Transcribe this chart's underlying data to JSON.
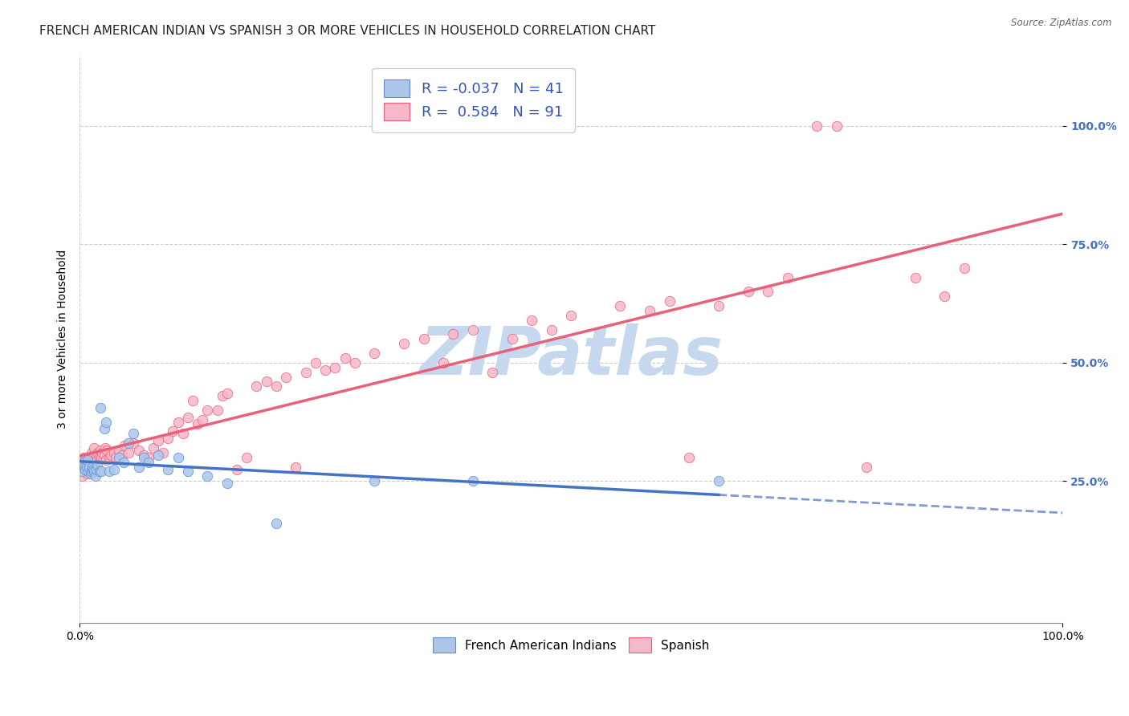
{
  "title": "FRENCH AMERICAN INDIAN VS SPANISH 3 OR MORE VEHICLES IN HOUSEHOLD CORRELATION CHART",
  "source": "Source: ZipAtlas.com",
  "ylabel": "3 or more Vehicles in Household",
  "watermark": "ZIPatlas",
  "blue_R": -0.037,
  "blue_N": 41,
  "pink_R": 0.584,
  "pink_N": 91,
  "blue_color": "#adc6e8",
  "pink_color": "#f5b8c8",
  "blue_edge_color": "#5b8dd9",
  "pink_edge_color": "#e8607a",
  "blue_line_color": "#4472c4",
  "pink_line_color": "#e8607a",
  "blue_points": [
    [
      0.2,
      27.0
    ],
    [
      0.3,
      28.5
    ],
    [
      0.4,
      29.0
    ],
    [
      0.5,
      28.0
    ],
    [
      0.6,
      27.5
    ],
    [
      0.7,
      28.0
    ],
    [
      0.8,
      29.5
    ],
    [
      0.9,
      27.0
    ],
    [
      1.0,
      28.0
    ],
    [
      1.1,
      26.5
    ],
    [
      1.2,
      27.0
    ],
    [
      1.3,
      28.0
    ],
    [
      1.4,
      27.5
    ],
    [
      1.5,
      27.0
    ],
    [
      1.6,
      26.0
    ],
    [
      1.7,
      27.5
    ],
    [
      1.8,
      28.5
    ],
    [
      2.0,
      27.0
    ],
    [
      2.1,
      40.5
    ],
    [
      2.2,
      27.0
    ],
    [
      2.5,
      36.0
    ],
    [
      2.7,
      37.5
    ],
    [
      3.0,
      27.0
    ],
    [
      3.5,
      27.5
    ],
    [
      4.0,
      30.0
    ],
    [
      4.5,
      29.0
    ],
    [
      5.0,
      33.0
    ],
    [
      5.5,
      35.0
    ],
    [
      6.0,
      28.0
    ],
    [
      6.5,
      30.0
    ],
    [
      7.0,
      29.0
    ],
    [
      8.0,
      30.5
    ],
    [
      9.0,
      27.5
    ],
    [
      10.0,
      30.0
    ],
    [
      11.0,
      27.0
    ],
    [
      13.0,
      26.0
    ],
    [
      15.0,
      24.5
    ],
    [
      20.0,
      16.0
    ],
    [
      30.0,
      25.0
    ],
    [
      40.0,
      25.0
    ],
    [
      65.0,
      25.0
    ]
  ],
  "pink_points": [
    [
      0.2,
      26.0
    ],
    [
      0.3,
      28.0
    ],
    [
      0.4,
      30.0
    ],
    [
      0.5,
      27.5
    ],
    [
      0.6,
      29.5
    ],
    [
      0.7,
      27.0
    ],
    [
      0.8,
      26.5
    ],
    [
      0.9,
      29.0
    ],
    [
      1.0,
      28.5
    ],
    [
      1.1,
      30.0
    ],
    [
      1.2,
      31.0
    ],
    [
      1.3,
      28.0
    ],
    [
      1.4,
      30.5
    ],
    [
      1.5,
      32.0
    ],
    [
      1.6,
      29.0
    ],
    [
      1.7,
      30.5
    ],
    [
      1.8,
      29.5
    ],
    [
      1.9,
      31.0
    ],
    [
      2.0,
      30.0
    ],
    [
      2.1,
      31.5
    ],
    [
      2.2,
      30.0
    ],
    [
      2.3,
      31.0
    ],
    [
      2.5,
      30.5
    ],
    [
      2.6,
      32.0
    ],
    [
      2.7,
      29.5
    ],
    [
      2.8,
      31.5
    ],
    [
      3.0,
      30.0
    ],
    [
      3.2,
      30.5
    ],
    [
      3.5,
      31.0
    ],
    [
      3.7,
      30.0
    ],
    [
      4.0,
      31.5
    ],
    [
      4.3,
      30.5
    ],
    [
      4.6,
      32.5
    ],
    [
      5.0,
      31.0
    ],
    [
      5.5,
      33.0
    ],
    [
      6.0,
      31.5
    ],
    [
      6.5,
      30.5
    ],
    [
      7.0,
      30.0
    ],
    [
      7.5,
      32.0
    ],
    [
      8.0,
      33.5
    ],
    [
      8.5,
      31.0
    ],
    [
      9.0,
      34.0
    ],
    [
      9.5,
      35.5
    ],
    [
      10.0,
      37.5
    ],
    [
      10.5,
      35.0
    ],
    [
      11.0,
      38.5
    ],
    [
      11.5,
      42.0
    ],
    [
      12.0,
      37.0
    ],
    [
      12.5,
      38.0
    ],
    [
      13.0,
      40.0
    ],
    [
      14.0,
      40.0
    ],
    [
      14.5,
      43.0
    ],
    [
      15.0,
      43.5
    ],
    [
      16.0,
      27.5
    ],
    [
      17.0,
      30.0
    ],
    [
      18.0,
      45.0
    ],
    [
      19.0,
      46.0
    ],
    [
      20.0,
      45.0
    ],
    [
      21.0,
      47.0
    ],
    [
      22.0,
      28.0
    ],
    [
      23.0,
      48.0
    ],
    [
      24.0,
      50.0
    ],
    [
      25.0,
      48.5
    ],
    [
      26.0,
      49.0
    ],
    [
      27.0,
      51.0
    ],
    [
      28.0,
      50.0
    ],
    [
      30.0,
      52.0
    ],
    [
      33.0,
      54.0
    ],
    [
      35.0,
      55.0
    ],
    [
      37.0,
      50.0
    ],
    [
      38.0,
      56.0
    ],
    [
      40.0,
      57.0
    ],
    [
      42.0,
      48.0
    ],
    [
      44.0,
      55.0
    ],
    [
      46.0,
      59.0
    ],
    [
      48.0,
      57.0
    ],
    [
      50.0,
      60.0
    ],
    [
      55.0,
      62.0
    ],
    [
      58.0,
      61.0
    ],
    [
      60.0,
      63.0
    ],
    [
      62.0,
      30.0
    ],
    [
      65.0,
      62.0
    ],
    [
      68.0,
      65.0
    ],
    [
      70.0,
      65.0
    ],
    [
      72.0,
      68.0
    ],
    [
      75.0,
      100.0
    ],
    [
      77.0,
      100.0
    ],
    [
      80.0,
      28.0
    ],
    [
      85.0,
      68.0
    ],
    [
      88.0,
      64.0
    ],
    [
      90.0,
      70.0
    ]
  ],
  "xlim": [
    0,
    100
  ],
  "ylim": [
    -5,
    115
  ],
  "yticks": [
    25.0,
    50.0,
    75.0,
    100.0
  ],
  "ytick_labels": [
    "25.0%",
    "50.0%",
    "75.0%",
    "100.0%"
  ],
  "xtick_labels": [
    "0.0%",
    "100.0%"
  ],
  "grid_color": "#cccccc",
  "bg_color": "#ffffff",
  "title_fontsize": 11,
  "axis_label_fontsize": 10,
  "tick_label_fontsize": 10,
  "legend_R_color": "#3355bb",
  "watermark_color": "#c5d8ee",
  "watermark_fontsize": 60
}
